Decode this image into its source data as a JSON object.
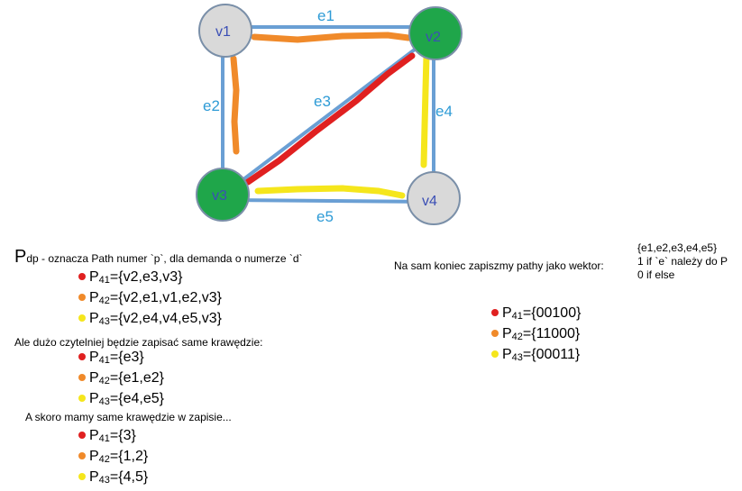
{
  "graph": {
    "nodes": {
      "v1": "v1",
      "v2": "v2",
      "v3": "v3",
      "v4": "v4"
    },
    "edges": {
      "e1": "e1",
      "e2": "e2",
      "e3": "e3",
      "e4": "e4",
      "e5": "e5"
    },
    "colors": {
      "node_gray": "#d9d9d9",
      "node_green": "#1fa64a",
      "edge_blue": "#6a9fd4",
      "path_red": "#e02020",
      "path_orange": "#f08a2a",
      "path_yellow": "#f5e61c"
    }
  },
  "definition": {
    "symbol": "P",
    "subscript": "dp",
    "text": " - oznacza Path numer `p`, dla demanda o numerze `d`"
  },
  "paths_vertices": [
    {
      "sub": "41",
      "value": "={v2,e3,v3}",
      "color": "red"
    },
    {
      "sub": "42",
      "value": "={v2,e1,v1,e2,v3}",
      "color": "orange"
    },
    {
      "sub": "43",
      "value": "={v2,e4,v4,e5,v3}",
      "color": "yellow"
    }
  ],
  "note_edges": "Ale dużo czytelniej będzie zapisać same krawędzie:",
  "paths_edges": [
    {
      "sub": "41",
      "value": "={e3}",
      "color": "red"
    },
    {
      "sub": "42",
      "value": "={e1,e2}",
      "color": "orange"
    },
    {
      "sub": "43",
      "value": "={e4,e5}",
      "color": "yellow"
    }
  ],
  "note_numbers": "A skoro mamy same krawędzie w zapisie...",
  "paths_numbers": [
    {
      "sub": "41",
      "value": "={3}",
      "color": "red"
    },
    {
      "sub": "42",
      "value": "={1,2}",
      "color": "orange"
    },
    {
      "sub": "43",
      "value": "={4,5}",
      "color": "yellow"
    }
  ],
  "vector_intro": "Na sam koniec zapiszmy pathy jako wektor:",
  "vector_legend": {
    "line1": "{e1,e2,e3,e4,e5}",
    "line2": "1 if `e` należy do P",
    "line3": "0 if else"
  },
  "paths_vectors": [
    {
      "sub": "41",
      "value": "={00100}",
      "color": "red"
    },
    {
      "sub": "42",
      "value": "={11000}",
      "color": "orange"
    },
    {
      "sub": "43",
      "value": "={00011}",
      "color": "yellow"
    }
  ]
}
